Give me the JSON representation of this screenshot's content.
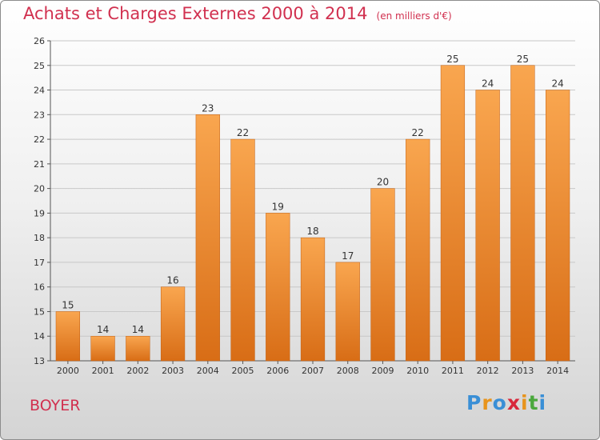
{
  "title": "Achats et Charges Externes 2000 à 2014",
  "subtitle": "(en milliers d'€)",
  "commune": "BOYER",
  "logo": {
    "text": "Proxiti",
    "letter_colors": [
      "#3a8fd6",
      "#e8941c",
      "#3a8fd6",
      "#d8283c",
      "#e8941c",
      "#4aa83c",
      "#3a8fd6"
    ]
  },
  "colors": {
    "bar_top": "#f9a64f",
    "bar_bottom": "#d86d16",
    "title": "#d1304f",
    "grid": "#c8c8c8"
  },
  "chart_data": {
    "type": "bar",
    "categories": [
      "2000",
      "2001",
      "2002",
      "2003",
      "2004",
      "2005",
      "2006",
      "2007",
      "2008",
      "2009",
      "2010",
      "2011",
      "2012",
      "2013",
      "2014"
    ],
    "values": [
      15,
      14,
      14,
      16,
      23,
      22,
      19,
      18,
      17,
      20,
      22,
      25,
      24,
      25,
      24
    ],
    "data_labels": [
      "15",
      "14",
      "14",
      "16",
      "23",
      "22",
      "19",
      "18",
      "17",
      "20",
      "22",
      "25",
      "24",
      "25",
      "24"
    ],
    "yticks": [
      "13",
      "14",
      "15",
      "16",
      "17",
      "18",
      "19",
      "20",
      "21",
      "22",
      "23",
      "24",
      "25",
      "26"
    ],
    "ylim": [
      13,
      26
    ],
    "grid": true,
    "legend": "none"
  }
}
